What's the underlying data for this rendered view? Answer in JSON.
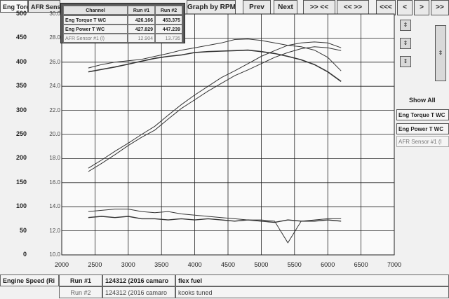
{
  "tabs": [
    {
      "label": "Eng Torq",
      "active": true
    },
    {
      "label": "AFR Sens",
      "active": false
    }
  ],
  "toolbar": {
    "graph_by": "Graph by RPM",
    "prev": "Prev",
    "next": "Next",
    "nav": [
      ">> <<",
      "<< >>",
      "<<<",
      "<",
      ">",
      ">>"
    ]
  },
  "channel_table": {
    "headers": [
      "Channel",
      "Run #1",
      "Run #2"
    ],
    "rows": [
      {
        "channel": "Eng Torque T WC",
        "run1": "426.166",
        "run2": "453.375"
      },
      {
        "channel": "Eng Power T WC",
        "run1": "427.829",
        "run2": "447.239"
      },
      {
        "channel": "AFR Sensor #1 (l)",
        "run1": "12.904",
        "run2": "13.735"
      }
    ]
  },
  "side_panel": {
    "show_all": "Show All",
    "channels": [
      "Eng Torque T WC",
      "Eng Power T WC",
      "AFR Sensor #1 (l"
    ],
    "arrows": [
      "⇕",
      "⇕",
      "⇕",
      "⇕"
    ]
  },
  "bottom": {
    "x_channel": "Engine Speed (Ri",
    "runs": [
      {
        "run": "Run #1",
        "desc": "124312 (2016 camaro",
        "note": "flex fuel"
      },
      {
        "run": "Run #2",
        "desc": "124312 (2016 camaro",
        "note": "kooks tuned"
      }
    ]
  },
  "colors": {
    "plot_bg": "#fafafa",
    "grid": "#222222",
    "trace": "#333333"
  },
  "chart_data": {
    "type": "line",
    "x": [
      2400,
      2600,
      2800,
      3000,
      3200,
      3400,
      3600,
      3800,
      4000,
      4200,
      4400,
      4600,
      4800,
      5000,
      5200,
      5400,
      5600,
      5800,
      6000,
      6200
    ],
    "xlim": [
      2000,
      7000
    ],
    "xticks": [
      "2000",
      "2500",
      "3000",
      "3500",
      "4000",
      "4500",
      "5000",
      "5500",
      "6000",
      "6500",
      "7000"
    ],
    "left_axis": {
      "ylim": [
        0,
        500
      ],
      "ticks": [
        "0",
        "50",
        "100",
        "150",
        "200",
        "250",
        "300",
        "350",
        "400",
        "450",
        "500"
      ]
    },
    "right_axis": {
      "ylim": [
        10,
        30
      ],
      "ticks": [
        "10.0",
        "12.0",
        "14.0",
        "16.0",
        "18.0",
        "20.0",
        "22.0",
        "24.0",
        "26.0",
        "28.0",
        "30.0"
      ]
    },
    "series": [
      {
        "name": "Eng Torque T WC",
        "axis": "left",
        "values": [
          380,
          385,
          390,
          396,
          402,
          408,
          412,
          415,
          420,
          422,
          423,
          424,
          425,
          422,
          418,
          412,
          405,
          395,
          380,
          360
        ]
      },
      {
        "axis": "left",
        "values": [
          388,
          395,
          400,
          403,
          406,
          412,
          418,
          425,
          430,
          435,
          440,
          447,
          448,
          445,
          440,
          435,
          432,
          425,
          410,
          382
        ]
      },
      {
        "name": "Eng Power T WC",
        "axis": "left",
        "values": [
          173,
          190,
          208,
          227,
          244,
          259,
          282,
          304,
          322,
          340,
          356,
          372,
          384,
          397,
          410,
          420,
          428,
          432,
          430,
          424
        ]
      },
      {
        "axis": "left",
        "values": [
          180,
          197,
          215,
          232,
          250,
          267,
          290,
          312,
          332,
          350,
          368,
          382,
          397,
          412,
          424,
          435,
          440,
          442,
          440,
          430
        ]
      },
      {
        "name": "AFR Sensor #1 (l)",
        "axis": "right",
        "values": [
          13.1,
          13.2,
          13.1,
          13.2,
          13.0,
          13.0,
          12.9,
          13.0,
          12.9,
          13.0,
          12.9,
          12.8,
          12.9,
          12.8,
          12.7,
          12.9,
          12.8,
          12.8,
          12.9,
          12.8
        ]
      },
      {
        "axis": "right",
        "values": [
          13.6,
          13.7,
          13.8,
          13.8,
          13.6,
          13.5,
          13.6,
          13.4,
          13.3,
          13.2,
          13.1,
          13.0,
          12.9,
          12.9,
          12.8,
          11.0,
          12.8,
          12.9,
          13.0,
          13.0
        ]
      }
    ]
  }
}
